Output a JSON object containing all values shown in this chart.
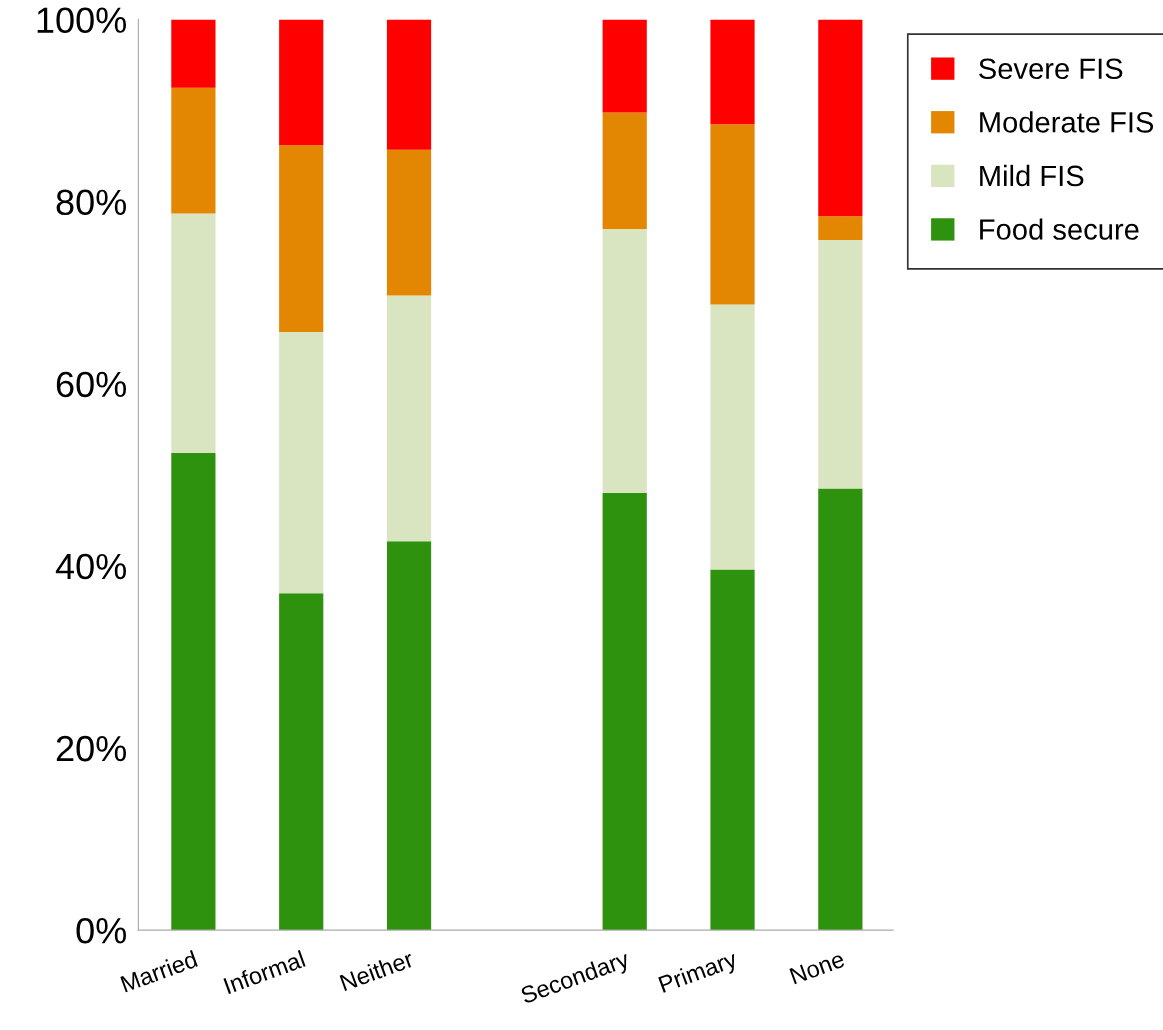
{
  "chart_data": {
    "type": "bar",
    "stacked": true,
    "categories": [
      "Married",
      "Informal",
      "Neither",
      null,
      "Secondary",
      "Primary",
      "None"
    ],
    "series": [
      {
        "name": "Food secure",
        "color": "#2e920e",
        "values": [
          52.4,
          37.0,
          42.7,
          null,
          48.0,
          39.6,
          48.5
        ]
      },
      {
        "name": "Mild FIS",
        "color": "#d9e4c1",
        "values": [
          26.3,
          28.7,
          27.0,
          null,
          29.0,
          29.1,
          27.3
        ]
      },
      {
        "name": "Moderate FIS",
        "color": "#e38702",
        "values": [
          13.8,
          20.5,
          16.0,
          null,
          12.8,
          19.8,
          2.6
        ]
      },
      {
        "name": "Severe FIS",
        "color": "#fe0000",
        "values": [
          7.5,
          13.8,
          14.3,
          null,
          10.2,
          11.5,
          21.6
        ]
      }
    ],
    "ylim": [
      0,
      100
    ],
    "yticks": [
      {
        "value": 0,
        "label": "0%"
      },
      {
        "value": 20,
        "label": "20%"
      },
      {
        "value": 40,
        "label": "40%"
      },
      {
        "value": 60,
        "label": "60%"
      },
      {
        "value": 80,
        "label": "80%"
      },
      {
        "value": 100,
        "label": "100%"
      }
    ],
    "grid": false,
    "legend": "top right"
  }
}
